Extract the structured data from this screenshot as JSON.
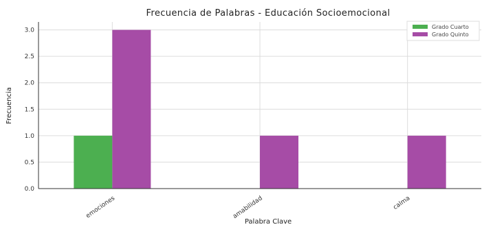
{
  "chart_data": {
    "type": "bar",
    "title": "Frecuencia de Palabras - Educación Socioemocional",
    "xlabel": "Palabra Clave",
    "ylabel": "Frecuencia",
    "categories": [
      "emociones",
      "amabilidad",
      "calma"
    ],
    "series": [
      {
        "name": "Grado Cuarto",
        "color": "#4caf50",
        "values": [
          1,
          0,
          0
        ]
      },
      {
        "name": "Grado Quinto",
        "color": "#a64ca6",
        "values": [
          3,
          1,
          1
        ]
      }
    ],
    "ylim": [
      0,
      3.15
    ],
    "yticks": [
      "0.0",
      "0.5",
      "1.0",
      "1.5",
      "2.0",
      "2.5",
      "3.0"
    ],
    "grid": true,
    "legend_position": "top-right"
  }
}
